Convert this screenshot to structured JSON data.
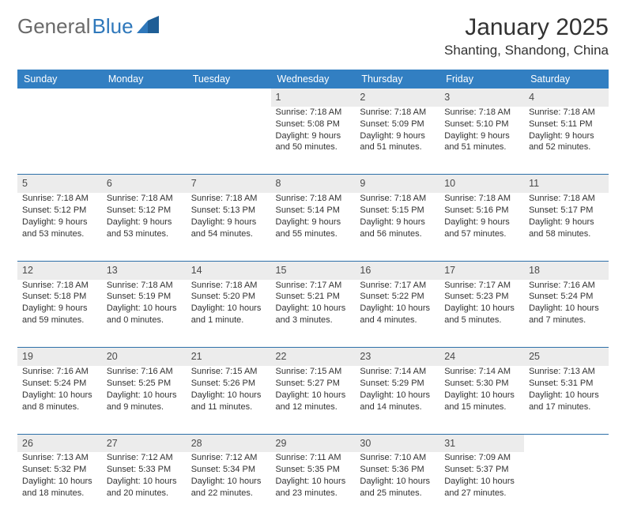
{
  "logo": {
    "text1": "General",
    "text2": "Blue",
    "shape_color": "#2f78bb"
  },
  "title": "January 2025",
  "location": "Shanting, Shandong, China",
  "colors": {
    "header_bg": "#327fc2",
    "header_text": "#ffffff",
    "daynum_bg": "#ececec",
    "row_divider": "#2d6fa8",
    "body_text": "#323232"
  },
  "weekdays": [
    "Sunday",
    "Monday",
    "Tuesday",
    "Wednesday",
    "Thursday",
    "Friday",
    "Saturday"
  ],
  "weeks": [
    {
      "nums": [
        "",
        "",
        "",
        "1",
        "2",
        "3",
        "4"
      ],
      "info": [
        "",
        "",
        "",
        "Sunrise: 7:18 AM\nSunset: 5:08 PM\nDaylight: 9 hours and 50 minutes.",
        "Sunrise: 7:18 AM\nSunset: 5:09 PM\nDaylight: 9 hours and 51 minutes.",
        "Sunrise: 7:18 AM\nSunset: 5:10 PM\nDaylight: 9 hours and 51 minutes.",
        "Sunrise: 7:18 AM\nSunset: 5:11 PM\nDaylight: 9 hours and 52 minutes."
      ]
    },
    {
      "nums": [
        "5",
        "6",
        "7",
        "8",
        "9",
        "10",
        "11"
      ],
      "info": [
        "Sunrise: 7:18 AM\nSunset: 5:12 PM\nDaylight: 9 hours and 53 minutes.",
        "Sunrise: 7:18 AM\nSunset: 5:12 PM\nDaylight: 9 hours and 53 minutes.",
        "Sunrise: 7:18 AM\nSunset: 5:13 PM\nDaylight: 9 hours and 54 minutes.",
        "Sunrise: 7:18 AM\nSunset: 5:14 PM\nDaylight: 9 hours and 55 minutes.",
        "Sunrise: 7:18 AM\nSunset: 5:15 PM\nDaylight: 9 hours and 56 minutes.",
        "Sunrise: 7:18 AM\nSunset: 5:16 PM\nDaylight: 9 hours and 57 minutes.",
        "Sunrise: 7:18 AM\nSunset: 5:17 PM\nDaylight: 9 hours and 58 minutes."
      ]
    },
    {
      "nums": [
        "12",
        "13",
        "14",
        "15",
        "16",
        "17",
        "18"
      ],
      "info": [
        "Sunrise: 7:18 AM\nSunset: 5:18 PM\nDaylight: 9 hours and 59 minutes.",
        "Sunrise: 7:18 AM\nSunset: 5:19 PM\nDaylight: 10 hours and 0 minutes.",
        "Sunrise: 7:18 AM\nSunset: 5:20 PM\nDaylight: 10 hours and 1 minute.",
        "Sunrise: 7:17 AM\nSunset: 5:21 PM\nDaylight: 10 hours and 3 minutes.",
        "Sunrise: 7:17 AM\nSunset: 5:22 PM\nDaylight: 10 hours and 4 minutes.",
        "Sunrise: 7:17 AM\nSunset: 5:23 PM\nDaylight: 10 hours and 5 minutes.",
        "Sunrise: 7:16 AM\nSunset: 5:24 PM\nDaylight: 10 hours and 7 minutes."
      ]
    },
    {
      "nums": [
        "19",
        "20",
        "21",
        "22",
        "23",
        "24",
        "25"
      ],
      "info": [
        "Sunrise: 7:16 AM\nSunset: 5:24 PM\nDaylight: 10 hours and 8 minutes.",
        "Sunrise: 7:16 AM\nSunset: 5:25 PM\nDaylight: 10 hours and 9 minutes.",
        "Sunrise: 7:15 AM\nSunset: 5:26 PM\nDaylight: 10 hours and 11 minutes.",
        "Sunrise: 7:15 AM\nSunset: 5:27 PM\nDaylight: 10 hours and 12 minutes.",
        "Sunrise: 7:14 AM\nSunset: 5:29 PM\nDaylight: 10 hours and 14 minutes.",
        "Sunrise: 7:14 AM\nSunset: 5:30 PM\nDaylight: 10 hours and 15 minutes.",
        "Sunrise: 7:13 AM\nSunset: 5:31 PM\nDaylight: 10 hours and 17 minutes."
      ]
    },
    {
      "nums": [
        "26",
        "27",
        "28",
        "29",
        "30",
        "31",
        ""
      ],
      "info": [
        "Sunrise: 7:13 AM\nSunset: 5:32 PM\nDaylight: 10 hours and 18 minutes.",
        "Sunrise: 7:12 AM\nSunset: 5:33 PM\nDaylight: 10 hours and 20 minutes.",
        "Sunrise: 7:12 AM\nSunset: 5:34 PM\nDaylight: 10 hours and 22 minutes.",
        "Sunrise: 7:11 AM\nSunset: 5:35 PM\nDaylight: 10 hours and 23 minutes.",
        "Sunrise: 7:10 AM\nSunset: 5:36 PM\nDaylight: 10 hours and 25 minutes.",
        "Sunrise: 7:09 AM\nSunset: 5:37 PM\nDaylight: 10 hours and 27 minutes.",
        ""
      ]
    }
  ]
}
